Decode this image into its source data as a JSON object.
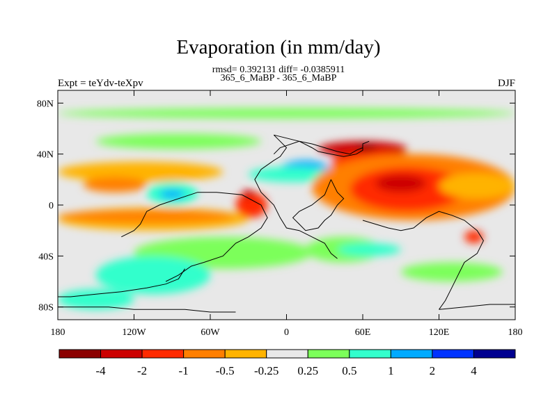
{
  "title": "Evaporation (in mm/day)",
  "stats_line": "rmsd= 0.392131 diff= -0.0385911",
  "case_line": "365_6_MaBP - 365_6_MaBP",
  "left_label": "Expt = teYdv-teXpv",
  "right_label": "DJF",
  "chart_data": {
    "type": "heatmap",
    "title": "Evaporation (in mm/day)",
    "xlim": [
      -180,
      180
    ],
    "ylim": [
      -90,
      90
    ],
    "x_ticks": [
      "180",
      "120W",
      "60W",
      "0",
      "60E",
      "120E",
      "180"
    ],
    "y_ticks": [
      "80N",
      "40N",
      "0",
      "40S",
      "80S"
    ],
    "colorbar": {
      "labels": [
        "-4",
        "-2",
        "-1",
        "-0.5",
        "-0.25",
        "0.25",
        "0.5",
        "1",
        "2",
        "4"
      ],
      "colors": [
        "#8b0000",
        "#cc0000",
        "#ff2a00",
        "#ff7f00",
        "#ffb300",
        "#e8e8e8",
        "#7cff5a",
        "#33ffcc",
        "#00aaff",
        "#0033ff",
        "#000090"
      ]
    },
    "background_color": "#e8e8e8",
    "regions": [
      {
        "level": 0.25,
        "color": "#7cff5a",
        "lon": [
          -180,
          180
        ],
        "lat": [
          68,
          76
        ]
      },
      {
        "level": 0.25,
        "color": "#7cff5a",
        "lon": [
          -150,
          -20
        ],
        "lat": [
          44,
          56
        ]
      },
      {
        "level": -0.25,
        "color": "#ffb300",
        "lon": [
          -180,
          -50
        ],
        "lat": [
          18,
          34
        ]
      },
      {
        "level": -0.5,
        "color": "#ff7f00",
        "lon": [
          -160,
          -110
        ],
        "lat": [
          10,
          22
        ]
      },
      {
        "level": -0.25,
        "color": "#ffb300",
        "lon": [
          -180,
          -30
        ],
        "lat": [
          -20,
          -2
        ]
      },
      {
        "level": -0.5,
        "color": "#ff7f00",
        "lon": [
          -180,
          -40
        ],
        "lat": [
          -14,
          -4
        ]
      },
      {
        "level": 0.5,
        "color": "#33ffcc",
        "lon": [
          -110,
          -70
        ],
        "lat": [
          0,
          18
        ]
      },
      {
        "level": 1,
        "color": "#00aaff",
        "lon": [
          -100,
          -80
        ],
        "lat": [
          5,
          12
        ]
      },
      {
        "level": -1,
        "color": "#ff2a00",
        "lon": [
          -40,
          -15
        ],
        "lat": [
          -10,
          10
        ]
      },
      {
        "level": -2,
        "color": "#cc0000",
        "lon": [
          -35,
          -25
        ],
        "lat": [
          5,
          12
        ]
      },
      {
        "level": 0.25,
        "color": "#7cff5a",
        "lon": [
          -120,
          20
        ],
        "lat": [
          -50,
          -25
        ]
      },
      {
        "level": 0.5,
        "color": "#33ffcc",
        "lon": [
          -150,
          -60
        ],
        "lat": [
          -70,
          -40
        ]
      },
      {
        "level": 0.5,
        "color": "#33ffcc",
        "lon": [
          -180,
          -120
        ],
        "lat": [
          -82,
          -66
        ]
      },
      {
        "level": 1,
        "color": "#00aaff",
        "lon": [
          -5,
          35
        ],
        "lat": [
          20,
          35
        ]
      },
      {
        "level": 0.5,
        "color": "#33ffcc",
        "lon": [
          -30,
          40
        ],
        "lat": [
          18,
          30
        ]
      },
      {
        "level": -2,
        "color": "#cc0000",
        "lon": [
          25,
          95
        ],
        "lat": [
          38,
          50
        ]
      },
      {
        "level": -4,
        "color": "#8b0000",
        "lon": [
          55,
          70
        ],
        "lat": [
          42,
          48
        ]
      },
      {
        "level": -1,
        "color": "#ff2a00",
        "lon": [
          35,
          110
        ],
        "lat": [
          25,
          42
        ]
      },
      {
        "level": -0.5,
        "color": "#ff7f00",
        "lon": [
          20,
          180
        ],
        "lat": [
          -12,
          40
        ]
      },
      {
        "level": -1,
        "color": "#ff2a00",
        "lon": [
          50,
          140
        ],
        "lat": [
          -5,
          30
        ]
      },
      {
        "level": -2,
        "color": "#cc0000",
        "lon": [
          70,
          110
        ],
        "lat": [
          10,
          24
        ]
      },
      {
        "level": -0.25,
        "color": "#ffb300",
        "lon": [
          120,
          180
        ],
        "lat": [
          5,
          25
        ]
      },
      {
        "level": 0.25,
        "color": "#7cff5a",
        "lon": [
          15,
          75
        ],
        "lat": [
          -45,
          -25
        ]
      },
      {
        "level": 0.5,
        "color": "#33ffcc",
        "lon": [
          40,
          90
        ],
        "lat": [
          -40,
          -30
        ]
      },
      {
        "level": 0.25,
        "color": "#7cff5a",
        "lon": [
          90,
          170
        ],
        "lat": [
          -60,
          -45
        ]
      },
      {
        "level": -1,
        "color": "#ff2a00",
        "lon": [
          140,
          155
        ],
        "lat": [
          -30,
          -20
        ]
      }
    ],
    "coastlines": [
      [
        [
          -130,
          -25
        ],
        [
          -120,
          -20
        ],
        [
          -115,
          -15
        ],
        [
          -110,
          -5
        ],
        [
          -100,
          0
        ],
        [
          -85,
          5
        ],
        [
          -70,
          10
        ],
        [
          -55,
          10
        ],
        [
          -35,
          8
        ],
        [
          -20,
          0
        ],
        [
          -15,
          -10
        ],
        [
          -20,
          -18
        ],
        [
          -30,
          -25
        ],
        [
          -40,
          -30
        ],
        [
          -50,
          -40
        ],
        [
          -65,
          -45
        ],
        [
          -75,
          -48
        ],
        [
          -85,
          -55
        ],
        [
          -95,
          -60
        ]
      ],
      [
        [
          -10,
          55
        ],
        [
          -5,
          50
        ],
        [
          0,
          45
        ],
        [
          -5,
          38
        ],
        [
          -10,
          35
        ],
        [
          -20,
          28
        ],
        [
          -25,
          20
        ],
        [
          -20,
          10
        ],
        [
          -15,
          5
        ],
        [
          -10,
          0
        ],
        [
          -5,
          -10
        ],
        [
          0,
          -18
        ],
        [
          10,
          -20
        ],
        [
          20,
          -25
        ],
        [
          30,
          -30
        ],
        [
          35,
          -38
        ],
        [
          40,
          -42
        ]
      ],
      [
        [
          -10,
          55
        ],
        [
          10,
          50
        ],
        [
          20,
          45
        ],
        [
          25,
          42
        ],
        [
          35,
          40
        ],
        [
          45,
          38
        ],
        [
          55,
          40
        ],
        [
          60,
          43
        ],
        [
          60,
          48
        ],
        [
          65,
          50
        ]
      ],
      [
        [
          35,
          20
        ],
        [
          40,
          10
        ],
        [
          45,
          5
        ],
        [
          40,
          0
        ],
        [
          35,
          -8
        ],
        [
          30,
          -12
        ],
        [
          25,
          -18
        ],
        [
          15,
          -20
        ],
        [
          10,
          -15
        ],
        [
          5,
          -10
        ],
        [
          10,
          -5
        ],
        [
          20,
          0
        ],
        [
          30,
          8
        ],
        [
          35,
          20
        ]
      ],
      [
        [
          60,
          -12
        ],
        [
          70,
          -15
        ],
        [
          80,
          -18
        ],
        [
          90,
          -20
        ],
        [
          100,
          -18
        ],
        [
          110,
          -10
        ],
        [
          120,
          -5
        ],
        [
          130,
          -8
        ],
        [
          140,
          -12
        ],
        [
          150,
          -20
        ],
        [
          155,
          -28
        ],
        [
          150,
          -38
        ],
        [
          140,
          -45
        ],
        [
          135,
          -55
        ],
        [
          130,
          -65
        ],
        [
          125,
          -75
        ],
        [
          120,
          -82
        ]
      ],
      [
        [
          -180,
          -72
        ],
        [
          -170,
          -72
        ],
        [
          -150,
          -70
        ],
        [
          -130,
          -68
        ],
        [
          -110,
          -65
        ],
        [
          -95,
          -62
        ],
        [
          -85,
          -58
        ],
        [
          -80,
          -50
        ]
      ],
      [
        [
          -180,
          -80
        ],
        [
          -160,
          -80
        ],
        [
          -140,
          -80
        ],
        [
          -120,
          -82
        ],
        [
          -100,
          -82
        ],
        [
          -80,
          -82
        ],
        [
          -60,
          -84
        ],
        [
          -40,
          -84
        ]
      ],
      [
        [
          120,
          -82
        ],
        [
          140,
          -80
        ],
        [
          160,
          -78
        ],
        [
          180,
          -78
        ]
      ],
      [
        [
          -10,
          40
        ],
        [
          -5,
          45
        ],
        [
          10,
          50
        ],
        [
          20,
          48
        ],
        [
          30,
          45
        ],
        [
          40,
          42
        ],
        [
          50,
          40
        ],
        [
          55,
          43
        ],
        [
          60,
          45
        ]
      ]
    ]
  }
}
